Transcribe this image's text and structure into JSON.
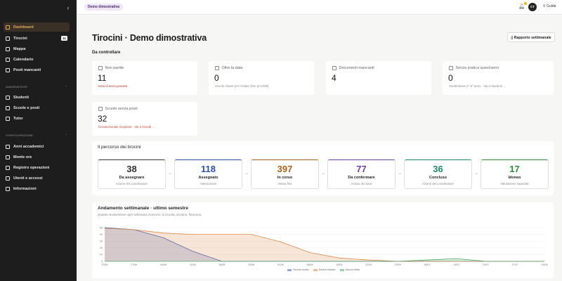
{
  "sidebar": {
    "items": [
      {
        "label": "Dashboard",
        "active": true
      },
      {
        "label": "Tirocini",
        "badge": "11"
      },
      {
        "label": "Mappa"
      },
      {
        "label": "Calendario"
      },
      {
        "label": "Posti mancanti"
      }
    ],
    "section1": "ANAGRAFICHE",
    "items2": [
      {
        "label": "Studenti"
      },
      {
        "label": "Scuole e posti"
      },
      {
        "label": "Tutor"
      }
    ],
    "section2": "CONFIGURAZIONE",
    "items3": [
      {
        "label": "Anni accademici"
      },
      {
        "label": "Monte ore"
      },
      {
        "label": "Registro operazioni"
      },
      {
        "label": "Utenti e accessi"
      },
      {
        "label": "Informazioni"
      }
    ]
  },
  "topbar": {
    "tenant": "Demo dimostrativa",
    "notifications": "1",
    "avatar": "CT",
    "guide": "Guida"
  },
  "page": {
    "title": "Tirocini · Demo dimostrativa",
    "report_button": "Rapporto settimanale",
    "section_check": "Da controllare"
  },
  "kpis": [
    {
      "label": "Non partite",
      "value": "11",
      "sub": "Data di avvio passata",
      "warn": true
    },
    {
      "label": "Oltre la data",
      "value": "0",
      "sub": "Scuole chiuse per l'estate (fino al 14/09)"
    },
    {
      "label": "Documenti mancanti",
      "value": "4",
      "sub": ""
    },
    {
      "label": "Senza pratica quest'anno",
      "value": "0",
      "sub": "Studentesse 2°-5° anno · Vai a Studenti →"
    },
    {
      "label": "Scuole senza posti",
      "value": "32",
      "sub": "Convenzionate ma piene · Vai a Scuole →",
      "warn": true
    }
  ],
  "pipeline": {
    "title": "Il percorso dei tirocini",
    "stages": [
      {
        "value": "38",
        "name": "Da assegnare",
        "note": "Azione del coordinatore",
        "color": "#333333"
      },
      {
        "value": "118",
        "name": "Assegnato",
        "note": "Attesa avvio",
        "color": "#2f4fa8"
      },
      {
        "value": "397",
        "name": "In corso",
        "note": "Attesa fine",
        "color": "#a8611e"
      },
      {
        "value": "77",
        "name": "Da confermare",
        "note": "Azione dei tutor",
        "color": "#6a3fa0"
      },
      {
        "value": "36",
        "name": "Concluso",
        "note": "Azione del coordinatore",
        "color": "#1f8a6a"
      },
      {
        "value": "17",
        "name": "Idoneo",
        "note": "Valutazione superata",
        "color": "#2e8a3f"
      }
    ]
  },
  "weekly": {
    "title": "Andamento settimanale · ultimo semestre",
    "subtitle": "Quante studentesse ogni settimana ricevono: la scuola, iniziano, finiscono."
  },
  "chart_data": {
    "type": "area",
    "x": [
      "22/06",
      "27/06",
      "04/08",
      "11/08",
      "18/08",
      "25/08",
      "01/09",
      "08/09",
      "15/09",
      "22/09",
      "29/09",
      "06/07",
      "13/07",
      "20/07",
      "27/07",
      "03/08"
    ],
    "ylim": [
      0,
      50
    ],
    "yticks": [
      "0",
      "10",
      "20",
      "30",
      "40",
      "50"
    ],
    "series": [
      {
        "name": "Scuole scelta",
        "color": "#3f5fbf",
        "values": [
          50,
          47,
          35,
          15,
          0,
          0,
          0,
          0,
          0,
          0,
          0,
          0,
          0,
          0,
          0,
          0
        ]
      },
      {
        "name": "Hanno iniziato",
        "color": "#d98a4a",
        "values": [
          49,
          47,
          42,
          40,
          40,
          40,
          29,
          13,
          5,
          2,
          0,
          0,
          0,
          0,
          0,
          0
        ]
      },
      {
        "name": "Hanno finito",
        "color": "#4fa86a",
        "values": [
          0,
          0,
          0,
          0,
          0,
          0,
          0,
          0,
          0,
          0,
          0,
          2,
          4,
          0,
          0,
          0
        ]
      }
    ]
  }
}
